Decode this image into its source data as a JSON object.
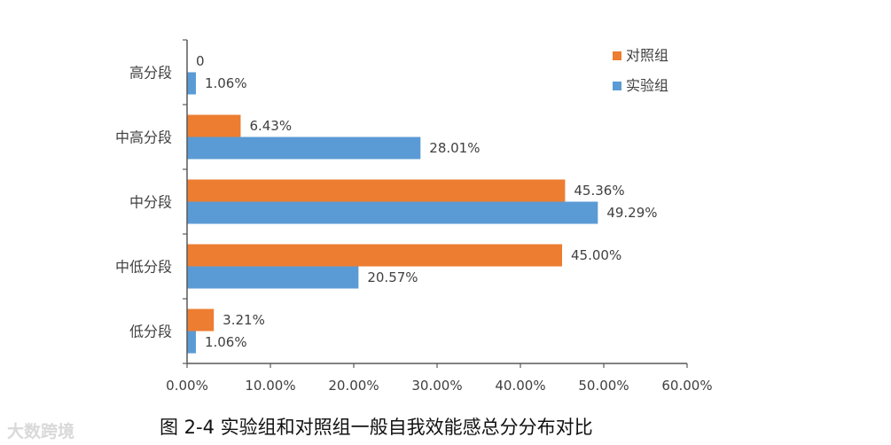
{
  "chart_data": {
    "type": "bar",
    "orientation": "horizontal",
    "categories": [
      "高分段",
      "中高分段",
      "中分段",
      "中低分段",
      "低分段"
    ],
    "series": [
      {
        "name": "对照组",
        "color": "#ED7D31",
        "values": [
          0,
          6.43,
          45.36,
          45.0,
          3.21
        ],
        "labels": [
          "0",
          "6.43%",
          "45.36%",
          "45.00%",
          "3.21%"
        ]
      },
      {
        "name": "实验组",
        "color": "#5B9BD5",
        "values": [
          1.06,
          28.01,
          49.29,
          20.57,
          1.06
        ],
        "labels": [
          "1.06%",
          "28.01%",
          "49.29%",
          "20.57%",
          "1.06%"
        ]
      }
    ],
    "xlim": [
      0,
      60
    ],
    "xticks": [
      "0.00%",
      "10.00%",
      "20.00%",
      "30.00%",
      "40.00%",
      "50.00%",
      "60.00%"
    ],
    "grid": false,
    "legend": "top-right"
  },
  "caption": "图 2-4 实验组和对照组一般自我效能感总分分布对比",
  "watermark": "大数跨境"
}
